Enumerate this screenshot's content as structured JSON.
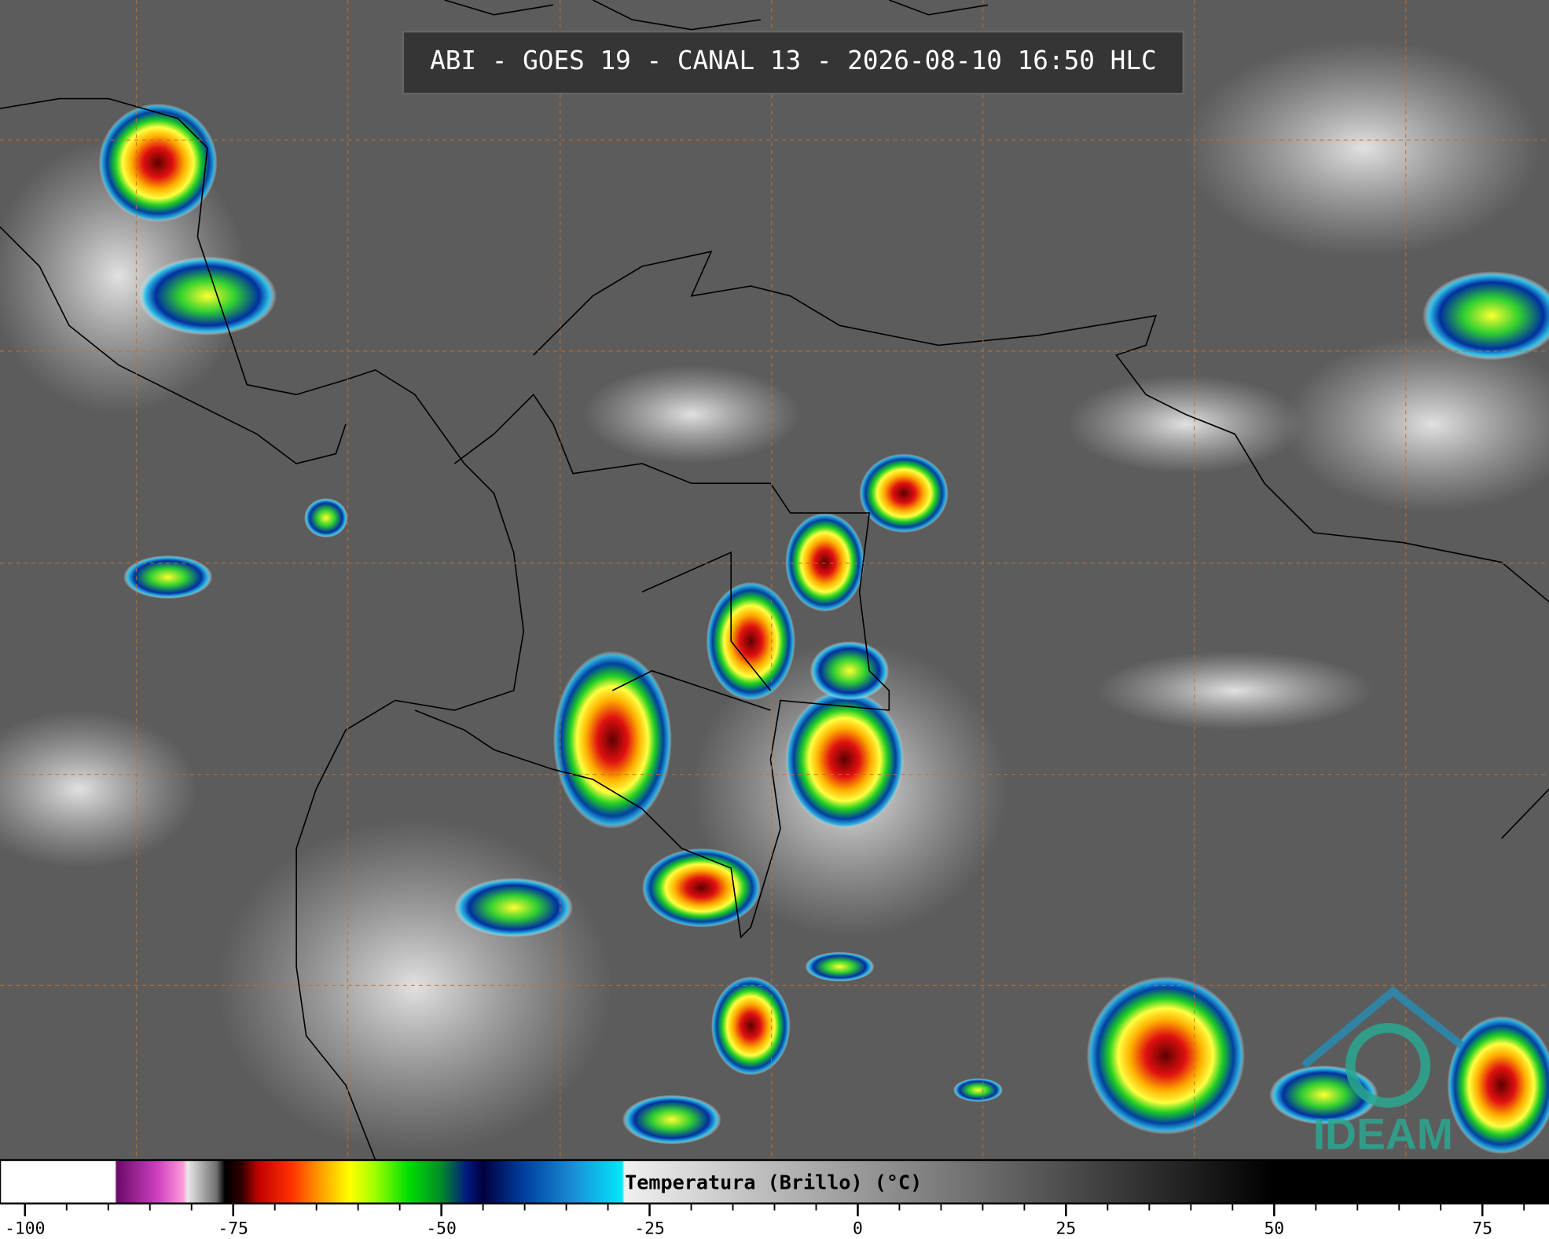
{
  "header": {
    "title": "ABI - GOES 19 - CANAL 13 - 2026-08-10 16:50 HLC"
  },
  "logo": {
    "text": "IDEAM"
  },
  "colorbar": {
    "label": "Temperatura (Brillo) (°C)",
    "xlim": [
      -103,
      83
    ],
    "xticks": [
      -100,
      -75,
      -50,
      -25,
      0,
      25,
      50,
      75
    ],
    "minor_tick_step": 5,
    "stops": [
      {
        "value": -103,
        "color": "#ffffff"
      },
      {
        "value": -89.2,
        "color": "#ffffff"
      },
      {
        "value": -89,
        "color": "#6a0a6a"
      },
      {
        "value": -84,
        "color": "#d040c0"
      },
      {
        "value": -81,
        "color": "#ff9ad8"
      },
      {
        "value": -80.5,
        "color": "#e8e8e8"
      },
      {
        "value": -77,
        "color": "#707070"
      },
      {
        "value": -76,
        "color": "#000000"
      },
      {
        "value": -74,
        "color": "#300000"
      },
      {
        "value": -72,
        "color": "#c00000"
      },
      {
        "value": -68,
        "color": "#ff3000"
      },
      {
        "value": -65,
        "color": "#ff9000"
      },
      {
        "value": -61,
        "color": "#ffff00"
      },
      {
        "value": -58,
        "color": "#a0ff00"
      },
      {
        "value": -54,
        "color": "#00e000"
      },
      {
        "value": -50,
        "color": "#008a2a"
      },
      {
        "value": -47,
        "color": "#001a80"
      },
      {
        "value": -45,
        "color": "#000040"
      },
      {
        "value": -40,
        "color": "#0040a0"
      },
      {
        "value": -34,
        "color": "#1a90d8"
      },
      {
        "value": -28.3,
        "color": "#00e8f8"
      },
      {
        "value": -28,
        "color": "#f0f0f0"
      },
      {
        "value": 50,
        "color": "#000000"
      },
      {
        "value": 83,
        "color": "#000000"
      }
    ]
  }
}
